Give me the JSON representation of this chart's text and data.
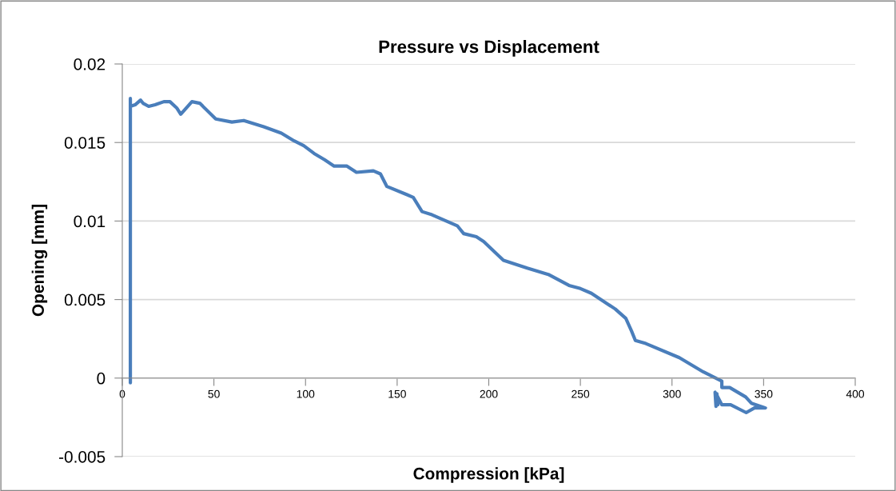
{
  "chart_data": {
    "type": "line",
    "title": "Pressure vs Displacement",
    "xlabel": "Compression [kPa]",
    "ylabel": "Opening [mm]",
    "xlim": [
      0,
      400
    ],
    "xticks": [
      0,
      50,
      100,
      150,
      200,
      250,
      300,
      350,
      400
    ],
    "ylim": [
      -0.005,
      0.02
    ],
    "yticks": [
      {
        "value": -0.005,
        "label": "-0.005"
      },
      {
        "value": 0,
        "label": "0"
      },
      {
        "value": 0.005,
        "label": "0.005"
      },
      {
        "value": 0.01,
        "label": "0.01"
      },
      {
        "value": 0.015,
        "label": "0.015"
      },
      {
        "value": 0.02,
        "label": "0.02"
      }
    ],
    "grid": "y",
    "legend": false,
    "marker": "none",
    "line_style": "solid",
    "series": [
      {
        "color": "#4a7ebb",
        "x": [
          4.4,
          4.4,
          4.4,
          7,
          10,
          11.3,
          14.4,
          17.9,
          22.7,
          26,
          29.7,
          31.9,
          38,
          42.3,
          51,
          59.8,
          66.3,
          77.2,
          86.8,
          93.8,
          99,
          104.7,
          110.4,
          115.6,
          122.6,
          127.8,
          137,
          140.9,
          144.4,
          154.9,
          158.8,
          163.6,
          169,
          182.8,
          186.3,
          193.2,
          197.2,
          208,
          221,
          232.5,
          243.8,
          250,
          256,
          269,
          274.8,
          277.9,
          280,
          285.7,
          304,
          317,
          327.2,
          327.2,
          331.5,
          340.2,
          343.3,
          351,
          345,
          340.5,
          332,
          327.2,
          325,
          323.5,
          324,
          324.5,
          325
        ],
        "values": [
          -0.0003,
          0.0178,
          0.0173,
          0.0174,
          0.0177,
          0.0175,
          0.0173,
          0.0174,
          0.0176,
          0.0176,
          0.0172,
          0.0168,
          0.0176,
          0.0175,
          0.0165,
          0.0163,
          0.0164,
          0.016,
          0.0156,
          0.0151,
          0.0148,
          0.0143,
          0.0139,
          0.0135,
          0.0135,
          0.0131,
          0.0132,
          0.013,
          0.0122,
          0.0117,
          0.0115,
          0.0106,
          0.0104,
          0.0097,
          0.0092,
          0.009,
          0.0087,
          0.0075,
          0.007,
          0.0066,
          0.0059,
          0.0057,
          0.0054,
          0.0044,
          0.0038,
          0.003,
          0.0024,
          0.0022,
          0.0013,
          0.0004,
          -0.0002,
          -0.0006,
          -0.0006,
          -0.0012,
          -0.0016,
          -0.0019,
          -0.0019,
          -0.0022,
          -0.0017,
          -0.0017,
          -0.0012,
          -0.0009,
          -0.0018,
          -0.001,
          -0.0017
        ]
      }
    ]
  }
}
